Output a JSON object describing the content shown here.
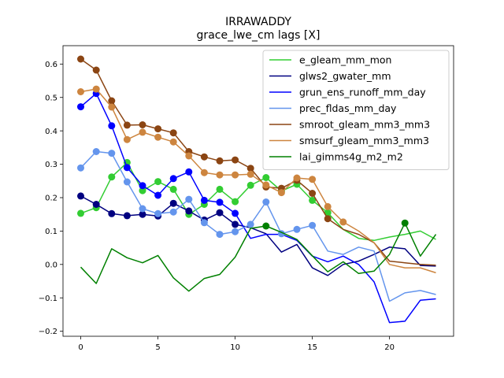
{
  "chart_data": {
    "type": "line",
    "title": "IRRAWADDY",
    "subtitle": "grace_lwe_cm lags [X]",
    "xlabel": "",
    "ylabel": "",
    "xlim": [
      -1.15,
      24.15
    ],
    "ylim": [
      -0.215,
      0.655
    ],
    "xticks": [
      0,
      5,
      10,
      15,
      20
    ],
    "yticks": [
      -0.2,
      -0.1,
      0.0,
      0.1,
      0.2,
      0.3,
      0.4,
      0.5,
      0.6
    ],
    "ytick_labels": [
      "−0.2",
      "−0.1",
      "0.0",
      "0.1",
      "0.2",
      "0.3",
      "0.4",
      "0.5",
      "0.6"
    ],
    "grid": false,
    "legend": "upper-right",
    "x": [
      0,
      1,
      2,
      3,
      4,
      5,
      6,
      7,
      8,
      9,
      10,
      11,
      12,
      13,
      14,
      15,
      16,
      17,
      18,
      19,
      20,
      21,
      22,
      23
    ],
    "series": [
      {
        "name": "e_gleam_mm_mon",
        "color": "#32cd32",
        "values": [
          0.153,
          0.17,
          0.262,
          0.305,
          0.221,
          0.248,
          0.225,
          0.15,
          0.18,
          0.225,
          0.188,
          0.237,
          0.26,
          0.22,
          0.24,
          0.192,
          0.155,
          0.105,
          0.078,
          0.072,
          0.082,
          0.09,
          0.1,
          0.075
        ],
        "markers": [
          0,
          1,
          2,
          3,
          4,
          5,
          6,
          7,
          8,
          9,
          10,
          11,
          12,
          13,
          14,
          15,
          16
        ]
      },
      {
        "name": "glws2_gwater_mm",
        "color": "#000080",
        "values": [
          0.205,
          0.18,
          0.152,
          0.146,
          0.15,
          0.145,
          0.183,
          0.16,
          0.133,
          0.155,
          0.12,
          0.11,
          0.092,
          0.037,
          0.06,
          -0.01,
          -0.033,
          0.0,
          0.01,
          0.03,
          0.052,
          0.047,
          -0.003,
          -0.005
        ],
        "markers": [
          0,
          1,
          2,
          3,
          4,
          5,
          6,
          7,
          8,
          9,
          10
        ]
      },
      {
        "name": "grun_ens_runoff_mm_day",
        "color": "#0000ff",
        "values": [
          0.472,
          0.512,
          0.415,
          0.29,
          0.236,
          0.207,
          0.257,
          0.277,
          0.192,
          0.186,
          0.153,
          0.078,
          0.09,
          0.09,
          0.072,
          0.025,
          0.008,
          0.025,
          0.0,
          -0.052,
          -0.174,
          -0.17,
          -0.107,
          -0.103
        ],
        "markers": [
          0,
          1,
          2,
          3,
          4,
          5,
          6,
          7,
          8,
          9,
          10
        ]
      },
      {
        "name": "prec_fldas_mm_day",
        "color": "#6495ed",
        "values": [
          0.289,
          0.338,
          0.333,
          0.247,
          0.167,
          0.152,
          0.157,
          0.195,
          0.125,
          0.09,
          0.098,
          0.12,
          0.187,
          0.092,
          0.105,
          0.117,
          0.04,
          0.03,
          0.052,
          0.04,
          -0.11,
          -0.085,
          -0.078,
          -0.09
        ],
        "markers": [
          0,
          1,
          2,
          3,
          4,
          5,
          6,
          7,
          8,
          9,
          10,
          11,
          12,
          13,
          14,
          15
        ]
      },
      {
        "name": "smroot_gleam_mm3_mm3",
        "color": "#8b4513",
        "values": [
          0.615,
          0.582,
          0.49,
          0.417,
          0.418,
          0.406,
          0.394,
          0.338,
          0.322,
          0.31,
          0.313,
          0.288,
          0.232,
          0.228,
          0.252,
          0.213,
          0.137,
          0.105,
          0.09,
          0.065,
          0.01,
          0.005,
          0.0,
          -0.002
        ],
        "markers": [
          0,
          1,
          2,
          3,
          4,
          5,
          6,
          7,
          8,
          9,
          10,
          11,
          12,
          13,
          14,
          15,
          16
        ]
      },
      {
        "name": "smsurf_gleam_mm3_mm3",
        "color": "#cd853f",
        "values": [
          0.517,
          0.525,
          0.471,
          0.374,
          0.396,
          0.381,
          0.367,
          0.325,
          0.275,
          0.268,
          0.268,
          0.27,
          0.238,
          0.215,
          0.259,
          0.255,
          0.173,
          0.127,
          0.1,
          0.065,
          0.0,
          -0.01,
          -0.01,
          -0.025
        ],
        "markers": [
          0,
          1,
          2,
          3,
          4,
          5,
          6,
          7,
          8,
          9,
          10,
          11,
          12,
          13,
          14,
          15,
          16,
          17
        ]
      },
      {
        "name": "lai_gimms4g_m2_m2",
        "color": "#008000",
        "values": [
          -0.008,
          -0.057,
          0.047,
          0.02,
          0.005,
          0.027,
          -0.04,
          -0.08,
          -0.042,
          -0.03,
          0.022,
          0.108,
          0.115,
          0.096,
          0.075,
          0.026,
          -0.022,
          0.008,
          -0.027,
          -0.02,
          0.03,
          0.124,
          0.025,
          0.09
        ],
        "markers": [
          12,
          21
        ]
      }
    ]
  }
}
